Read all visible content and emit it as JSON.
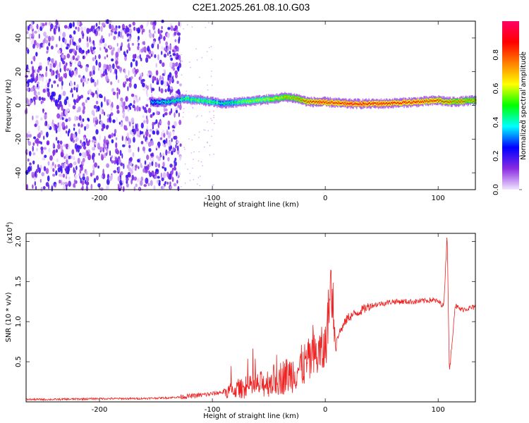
{
  "title": "C2E1.2025.261.08.10.G03",
  "chart_data": [
    {
      "type": "heatmap",
      "xlabel": "Height of straight line (km)",
      "ylabel": "Frequency (Hz)",
      "xlim": [
        -265,
        133
      ],
      "ylim": [
        -50,
        50
      ],
      "x_ticks": [
        -200,
        -100,
        0,
        100
      ],
      "y_ticks": [
        -40,
        -20,
        0,
        20,
        40
      ],
      "colorbar": {
        "label": "Normalized spectral amplitude",
        "range": [
          0,
          1
        ],
        "ticks": [
          "0.0",
          "0.2",
          "0.4",
          "0.6",
          "0.8"
        ],
        "colors": [
          "#f2e6ff",
          "#8a2be2",
          "#0000ff",
          "#00ffff",
          "#00ff00",
          "#ffff00",
          "#ff8000",
          "#ff0000",
          "#ff0066"
        ]
      },
      "ridge": {
        "x": [
          -155,
          -140,
          -125,
          -110,
          -100,
          -90,
          -75,
          -60,
          -45,
          -35,
          -25,
          -15,
          -5,
          0,
          20,
          50,
          80,
          100,
          110,
          133
        ],
        "frequency": [
          2,
          2,
          4,
          3,
          2,
          1,
          2,
          3,
          4,
          5,
          4,
          2,
          2,
          2,
          1,
          1,
          2,
          3,
          2,
          3
        ],
        "amplitude": [
          0.35,
          0.4,
          0.5,
          0.55,
          0.5,
          0.45,
          0.55,
          0.6,
          0.65,
          0.7,
          0.75,
          0.85,
          0.9,
          0.9,
          0.95,
          0.95,
          0.9,
          0.85,
          0.8,
          0.75
        ]
      },
      "noise_region_x": [
        -265,
        -128
      ]
    },
    {
      "type": "line",
      "xlabel": "Height of straight line (km)",
      "ylabel": "SNR (10 * v/v)",
      "yscale_label": "(x10",
      "yscale_exp": "4",
      "yscale_close": ")",
      "xlim": [
        -265,
        133
      ],
      "ylim": [
        0,
        2.1
      ],
      "x_ticks": [
        -200,
        -100,
        0,
        100
      ],
      "y_ticks": [
        "0.5",
        "1.0",
        "1.5",
        "2.0"
      ],
      "color": "#ee2222",
      "series": [
        {
          "x": [
            -265,
            -240,
            -200,
            -170,
            -140,
            -120,
            -100,
            -80,
            -60,
            -40,
            -30,
            -20,
            -10,
            0,
            5,
            10,
            20,
            40,
            60,
            80,
            95,
            100,
            105,
            108,
            110,
            115,
            120,
            133
          ],
          "values": [
            0.03,
            0.03,
            0.04,
            0.04,
            0.05,
            0.07,
            0.1,
            0.15,
            0.2,
            0.3,
            0.35,
            0.45,
            0.55,
            0.65,
            1.45,
            0.8,
            1.05,
            1.2,
            1.25,
            1.25,
            1.27,
            1.25,
            1.2,
            2.1,
            0.35,
            1.2,
            1.15,
            1.18
          ]
        }
      ]
    }
  ]
}
